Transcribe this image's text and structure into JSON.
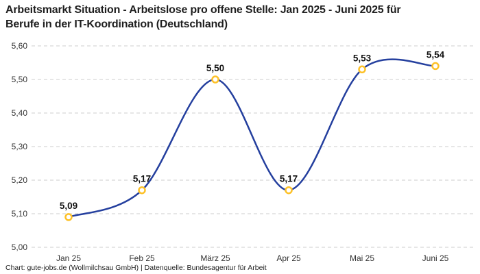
{
  "title": {
    "full": "Arbeitsmarkt Situation - Arbeitslose pro offene Stelle: Jan 2025 - Juni 2025 für Berufe in der IT-Koordination (Deutschland)",
    "lines": [
      "Arbeitsmarkt Situation - Arbeitslose pro offene Stelle: Jan 2025 - Juni 2025 für",
      "Berufe in der IT-Koordination (Deutschland)"
    ]
  },
  "footer": "Chart: gute-jobs.de (Wollmilchsau GmbH) | Datenquelle: Bundesagentur für Arbeit",
  "colors": {
    "background": "#FFFFFF",
    "line": "#243F9E",
    "marker_stroke": "#FDC128",
    "marker_fill": "#FFFFFF",
    "grid": "#CCCCCC",
    "title_text": "#1F1F1F",
    "axis_text": "#333333",
    "label_text": "#111111",
    "footer_text": "#222222"
  },
  "chart_data": {
    "type": "line",
    "title": "Arbeitsmarkt Situation - Arbeitslose pro offene Stelle: Jan 2025 - Juni 2025 für Berufe in der IT-Koordination (Deutschland)",
    "categories": [
      "Jan 25",
      "Feb 25",
      "März 25",
      "Apr 25",
      "Mai 25",
      "Juni 25"
    ],
    "values": [
      5.09,
      5.17,
      5.5,
      5.17,
      5.53,
      5.54
    ],
    "value_labels": [
      "5,09",
      "5,17",
      "5,50",
      "5,17",
      "5,53",
      "5,54"
    ],
    "xlabel": "",
    "ylabel": "",
    "ylim": [
      5.0,
      5.6
    ],
    "y_ticks": [
      5.0,
      5.1,
      5.2,
      5.3,
      5.4,
      5.5,
      5.6
    ],
    "y_tick_labels": [
      "5,00",
      "5,10",
      "5,20",
      "5,30",
      "5,40",
      "5,50",
      "5,60"
    ],
    "grid": "horizontal-dashed",
    "legend_position": "none",
    "line_style": "smooth-spline",
    "marker_style": "open-circle"
  }
}
